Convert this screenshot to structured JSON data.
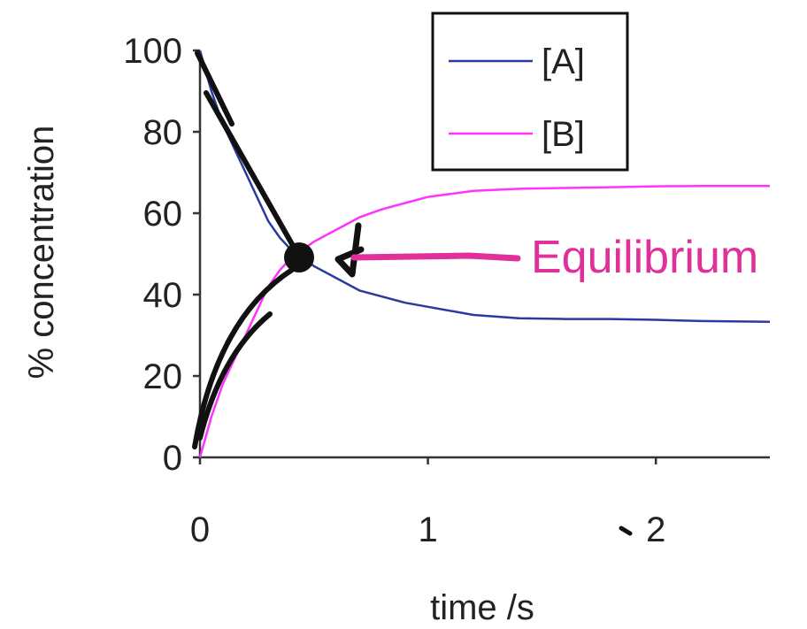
{
  "chart_data": {
    "type": "line",
    "xlabel": "time /s",
    "ylabel": "% concentration",
    "xlim": [
      0,
      2.5
    ],
    "ylim": [
      0,
      100
    ],
    "xticks": [
      0,
      1,
      2
    ],
    "yticks": [
      0,
      20,
      40,
      60,
      80,
      100
    ],
    "legend": {
      "placement": "top-right"
    },
    "series": [
      {
        "name": "[A]",
        "color": "#2b3a9e",
        "x": [
          0,
          0.05,
          0.1,
          0.15,
          0.2,
          0.25,
          0.3,
          0.35,
          0.4,
          0.5,
          0.6,
          0.7,
          0.8,
          0.9,
          1.0,
          1.2,
          1.4,
          1.6,
          1.8,
          2.0,
          2.2,
          2.5
        ],
        "y": [
          100,
          90,
          82,
          76,
          70,
          64,
          58,
          54,
          51,
          47,
          44,
          41,
          39.5,
          38,
          37,
          35,
          34.2,
          34,
          34,
          33.8,
          33.5,
          33.3
        ]
      },
      {
        "name": "[B]",
        "color": "#ff33ff",
        "x": [
          0,
          0.05,
          0.1,
          0.15,
          0.2,
          0.25,
          0.3,
          0.35,
          0.4,
          0.5,
          0.6,
          0.7,
          0.8,
          0.9,
          1.0,
          1.2,
          1.4,
          1.6,
          1.8,
          2.0,
          2.2,
          2.5
        ],
        "y": [
          0,
          10,
          18,
          24,
          30,
          36,
          42,
          46,
          49,
          53,
          56,
          59,
          61,
          62.5,
          64,
          65.5,
          66,
          66.2,
          66.4,
          66.6,
          66.7,
          66.7
        ]
      }
    ],
    "annotation": {
      "text": "Equilibrium",
      "color": "#e0309a"
    }
  }
}
